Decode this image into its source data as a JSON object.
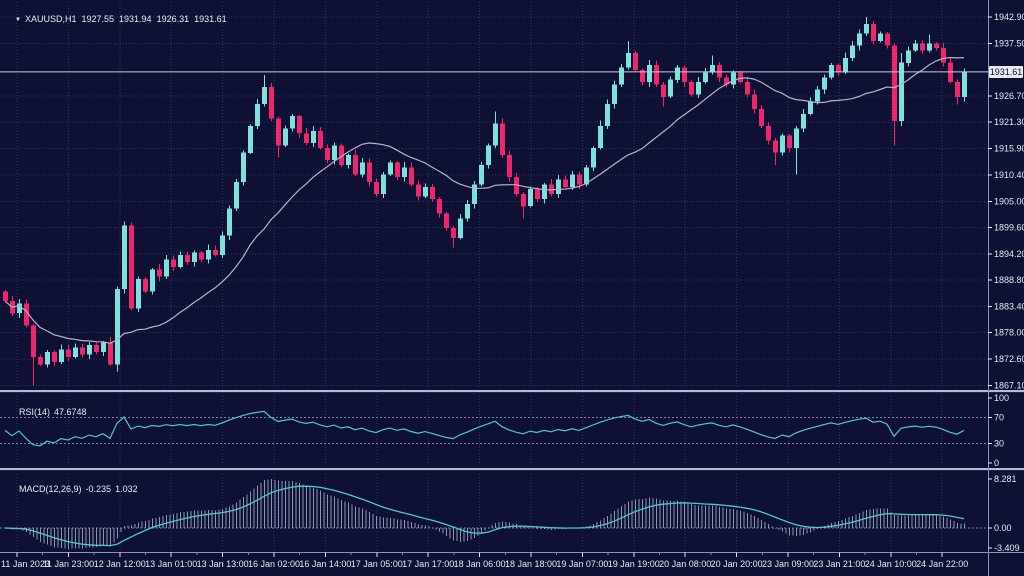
{
  "window": {
    "symbol": "XAUUSD,H1",
    "ohlc": {
      "open": "1927.55",
      "high": "1931.94",
      "low": "1926.31",
      "close": "1931.61"
    }
  },
  "rsi_panel": {
    "name": "RSI(14)",
    "value": "47.6748"
  },
  "macd_panel": {
    "name": "MACD(12,26,9)",
    "main_value": "-0.235",
    "signal_value": "1.032"
  },
  "colors": {
    "background": "#0e1133",
    "grid": "#2e3464",
    "level": "#7d82a3",
    "bull": "#7de2dc",
    "bear": "#f1256b",
    "ma": "#b3b5c6",
    "price_line": "#c9ccdf",
    "indicator": "#4cc9cf",
    "histogram": "#9ea4bf",
    "axis_text": "#e6e8f5",
    "axis_line": "#8e92b4",
    "divider": "#b7bad4",
    "price_tag_bg": "#e9ebf5",
    "price_tag_text": "#13153a"
  },
  "chart_data": {
    "type": "candlestick",
    "symbol": "XAUUSD",
    "timeframe": "H1",
    "y_axis": {
      "top": 1942.9,
      "bottom": 1867.1,
      "labels": [
        "1942.90",
        "1937.50",
        "1926.70",
        "1921.30",
        "1915.90",
        "1910.40",
        "1905.00",
        "1899.60",
        "1894.20",
        "1888.80",
        "1883.40",
        "1878.00",
        "1872.60",
        "1867.10"
      ],
      "current": "1931.61"
    },
    "x_axis": {
      "labels": [
        "11 Jan 2023",
        "11 Jan 23:00",
        "12 Jan 12:00",
        "13 Jan 01:00",
        "13 Jan 13:00",
        "16 Jan 02:00",
        "16 Jan 14:00",
        "17 Jan 05:00",
        "17 Jan 17:00",
        "18 Jan 06:00",
        "18 Jan 18:00",
        "19 Jan 07:00",
        "19 Jan 19:00",
        "20 Jan 08:00",
        "20 Jan 20:00",
        "23 Jan 09:00",
        "23 Jan 21:00",
        "24 Jan 10:00",
        "24 Jan 22:00"
      ]
    },
    "candles": {
      "first_open": 1886.5,
      "closes": [
        1884.5,
        1882.0,
        1884.0,
        1879.5,
        1873.0,
        1871.5,
        1874.0,
        1872.0,
        1874.5,
        1873.0,
        1875.0,
        1873.5,
        1875.5,
        1874.0,
        1876.0,
        1871.5,
        1887.0,
        1900.0,
        1883.0,
        1889.0,
        1886.5,
        1891.0,
        1889.5,
        1893.0,
        1891.5,
        1894.0,
        1892.5,
        1894.5,
        1893.0,
        1895.0,
        1894.0,
        1898.0,
        1903.5,
        1909.0,
        1915.0,
        1920.5,
        1925.0,
        1928.5,
        1922.0,
        1916.5,
        1920.0,
        1922.5,
        1919.0,
        1917.0,
        1919.5,
        1916.0,
        1913.5,
        1916.5,
        1912.5,
        1914.5,
        1910.5,
        1913.0,
        1909.0,
        1906.5,
        1910.5,
        1913.0,
        1910.0,
        1912.0,
        1908.5,
        1906.0,
        1908.0,
        1905.5,
        1902.5,
        1899.5,
        1897.5,
        1901.5,
        1904.5,
        1908.5,
        1912.5,
        1916.5,
        1921.0,
        1914.5,
        1910.0,
        1906.5,
        1904.0,
        1907.5,
        1905.5,
        1908.5,
        1906.5,
        1909.5,
        1908.0,
        1910.5,
        1908.5,
        1912.0,
        1916.0,
        1920.5,
        1925.0,
        1929.0,
        1932.5,
        1935.5,
        1932.0,
        1929.5,
        1933.0,
        1929.0,
        1926.5,
        1930.0,
        1932.5,
        1929.5,
        1927.0,
        1929.5,
        1931.5,
        1933.0,
        1930.5,
        1929.0,
        1931.5,
        1929.5,
        1927.0,
        1924.0,
        1920.5,
        1917.5,
        1915.0,
        1918.5,
        1916.0,
        1920.0,
        1923.0,
        1925.5,
        1928.0,
        1930.5,
        1933.0,
        1931.5,
        1934.5,
        1937.0,
        1939.5,
        1941.5,
        1938.0,
        1939.5,
        1937.0,
        1921.5,
        1933.5,
        1936.0,
        1937.5,
        1936.0,
        1937.5,
        1936.5,
        1933.5,
        1929.5,
        1926.5,
        1931.6
      ],
      "wick_default": [
        0.5,
        0.5
      ],
      "wick_overrides": {
        "4": [
          0.3,
          5.9
        ],
        "16": [
          0.5,
          1.5
        ],
        "37": [
          2.5,
          0.5
        ],
        "39": [
          0.4,
          2.5
        ],
        "64": [
          0.4,
          2.0
        ],
        "70": [
          2.5,
          0.5
        ],
        "74": [
          0.4,
          2.5
        ],
        "89": [
          2.5,
          0.4
        ],
        "94": [
          0.5,
          2.0
        ],
        "101": [
          2.0,
          0.4
        ],
        "110": [
          0.5,
          2.5
        ],
        "113": [
          0.5,
          5.5
        ],
        "123": [
          1.4,
          0.5
        ],
        "127": [
          0.5,
          5.0
        ],
        "128": [
          2.0,
          1.0
        ],
        "132": [
          1.8,
          0.4
        ],
        "136": [
          0.5,
          1.6
        ]
      }
    },
    "overlays": {
      "ma_period": 20
    },
    "rsi": {
      "period": 14,
      "current": 47.6748,
      "levels": [
        70,
        30
      ],
      "axis_labels": [
        "100",
        "70",
        "30",
        "0"
      ]
    },
    "macd": {
      "fast": 12,
      "slow": 26,
      "signal": 9,
      "current_main": -0.235,
      "current_signal": 1.032,
      "axis_labels": {
        "top": "8.281",
        "zero": "0.00",
        "bottom": "-3.409"
      }
    }
  }
}
